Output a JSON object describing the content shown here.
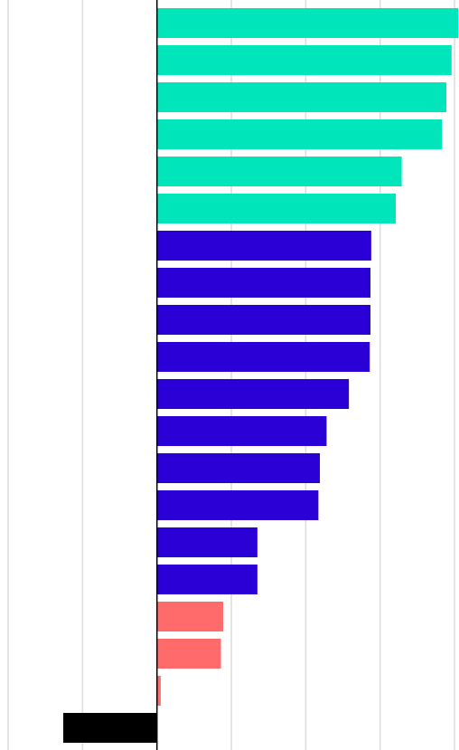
{
  "chart_data": {
    "type": "hbar",
    "categories": [
      null,
      null,
      null,
      null,
      null,
      null,
      null,
      null,
      null,
      null,
      null,
      null,
      null,
      null,
      null,
      null,
      null,
      null,
      null,
      null
    ],
    "values": [
      4.05,
      3.96,
      3.89,
      3.83,
      3.29,
      3.21,
      2.88,
      2.87,
      2.87,
      2.86,
      2.58,
      2.28,
      2.19,
      2.17,
      1.35,
      1.35,
      0.89,
      0.86,
      0.05,
      -1.26
    ],
    "colors": [
      "#00e5b9",
      "#00e5b9",
      "#00e5b9",
      "#00e5b9",
      "#00e5b9",
      "#00e5b9",
      "#2a00d6",
      "#2a00d6",
      "#2a00d6",
      "#2a00d6",
      "#2a00d6",
      "#2a00d6",
      "#2a00d6",
      "#2a00d6",
      "#2a00d6",
      "#2a00d6",
      "#ff6b6b",
      "#ff6b6b",
      "#ff6b6b",
      "#000000"
    ],
    "xlim": [
      -2.11,
      4.06
    ],
    "xticks": [
      -2,
      -1,
      0,
      1,
      2,
      3,
      4
    ],
    "grid": true
  }
}
